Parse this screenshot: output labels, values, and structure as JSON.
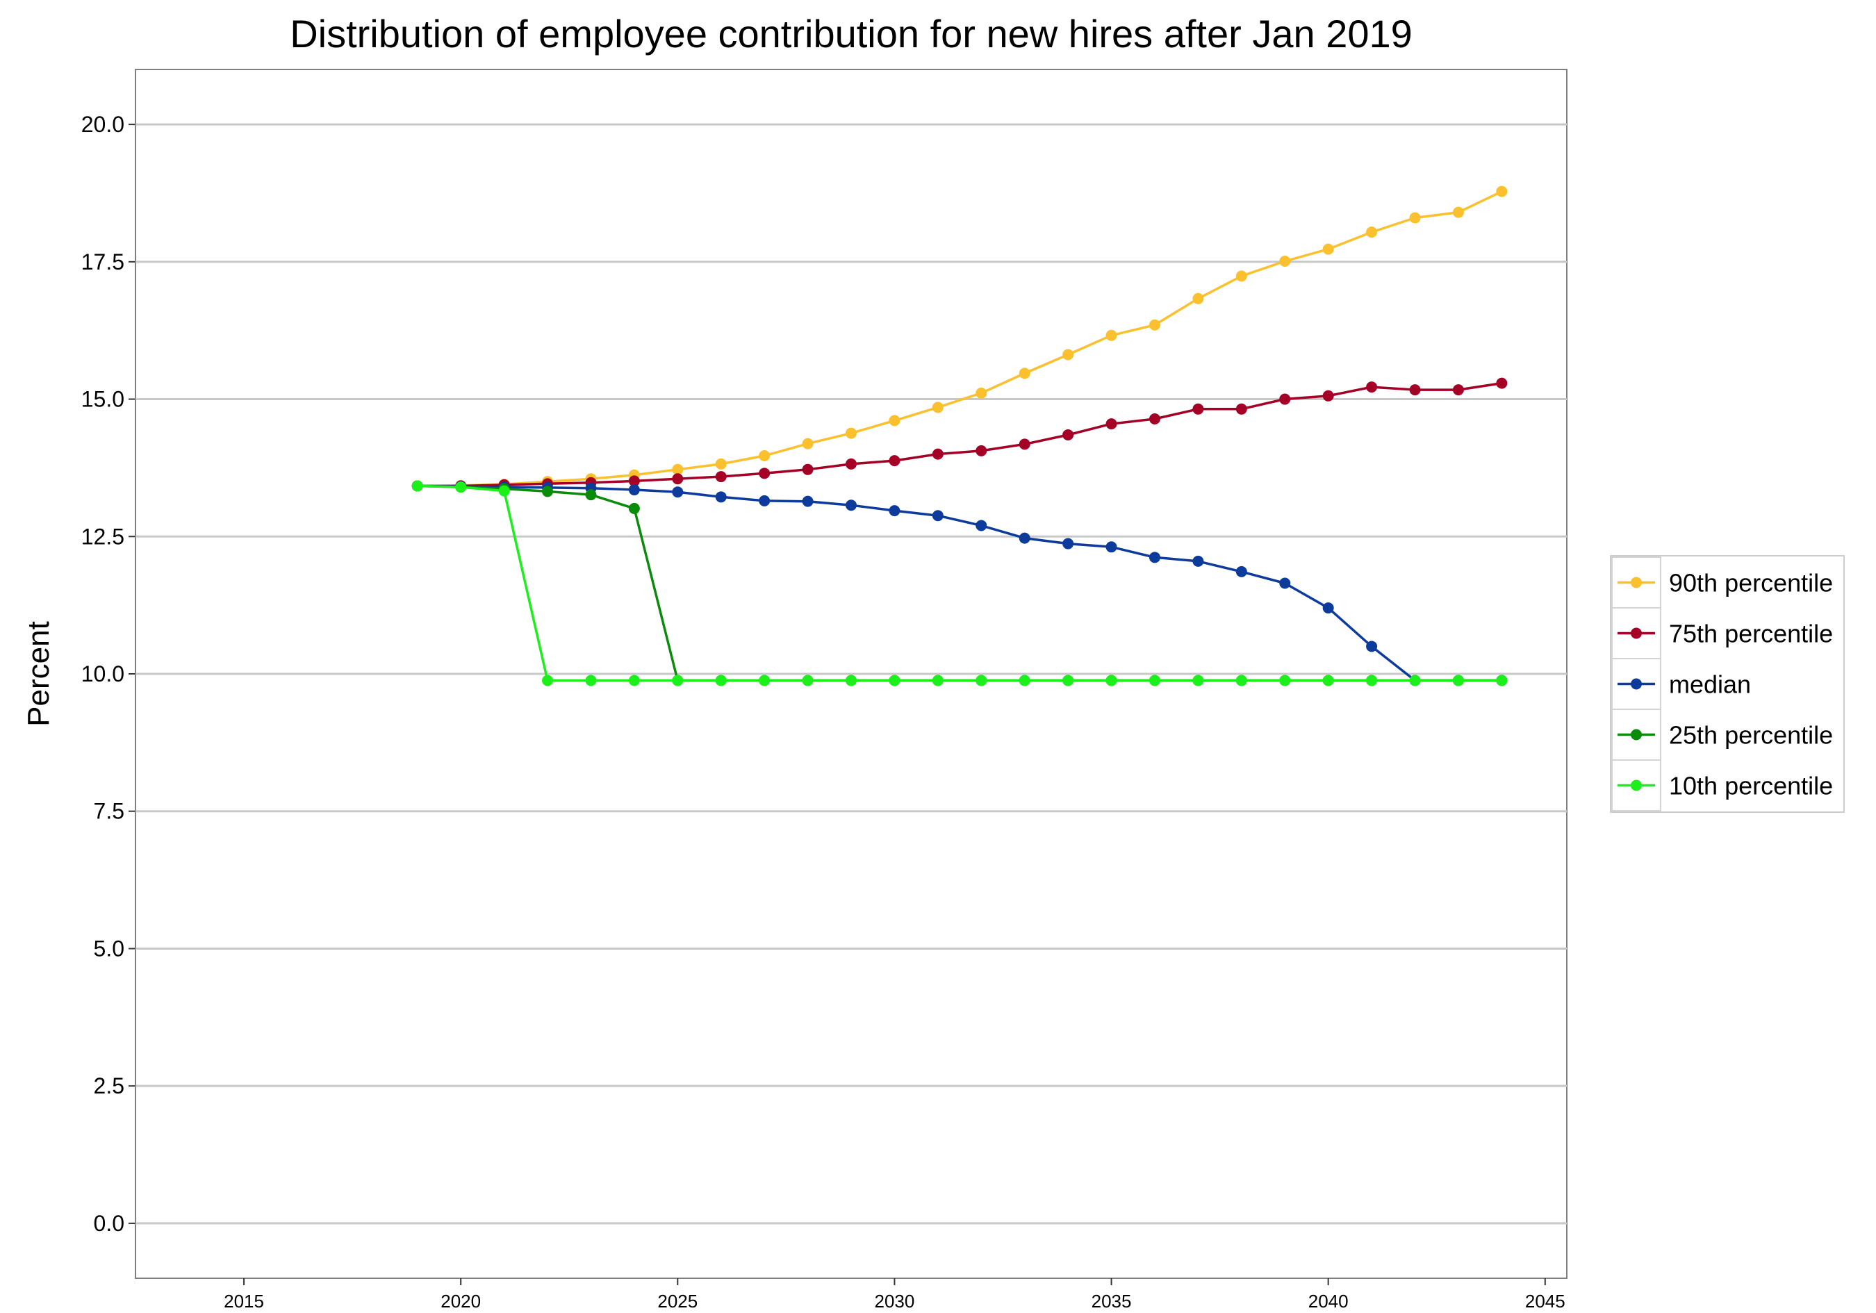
{
  "chart_data": {
    "type": "line",
    "title": "Distribution of employee contribution for new hires after Jan 2019",
    "xlabel": "",
    "ylabel": "Percent",
    "xlim": [
      2012.5,
      2045.5
    ],
    "ylim": [
      -1.0,
      21.0
    ],
    "xticks": [
      "2015",
      "2020",
      "2025",
      "2030",
      "2035",
      "2040",
      "2045"
    ],
    "yticks": [
      "0.0",
      "2.5",
      "5.0",
      "7.5",
      "10.0",
      "12.5",
      "15.0",
      "17.5",
      "20.0"
    ],
    "grid": "horizontal",
    "legend_position": "right",
    "x": [
      2019,
      2020,
      2021,
      2022,
      2023,
      2024,
      2025,
      2026,
      2027,
      2028,
      2029,
      2030,
      2031,
      2032,
      2033,
      2034,
      2035,
      2036,
      2037,
      2038,
      2039,
      2040,
      2041,
      2042,
      2043,
      2044
    ],
    "series": [
      {
        "name": "90th percentile",
        "color": "#fbc02d",
        "values": [
          13.42,
          13.43,
          13.45,
          13.5,
          13.55,
          13.62,
          13.72,
          13.82,
          13.97,
          14.19,
          14.38,
          14.61,
          14.85,
          15.11,
          15.47,
          15.81,
          16.16,
          16.35,
          16.83,
          17.24,
          17.51,
          17.73,
          18.04,
          18.3,
          18.4,
          18.78
        ]
      },
      {
        "name": "75th percentile",
        "color": "#a50026",
        "values": [
          13.42,
          13.42,
          13.44,
          13.46,
          13.48,
          13.51,
          13.55,
          13.59,
          13.65,
          13.72,
          13.82,
          13.88,
          14.0,
          14.06,
          14.18,
          14.35,
          14.55,
          14.64,
          14.82,
          14.82,
          15.0,
          15.06,
          15.22,
          15.17,
          15.17,
          15.29
        ]
      },
      {
        "name": "median",
        "color": "#0d3b9c",
        "values": [
          13.42,
          13.41,
          13.4,
          13.39,
          13.38,
          13.35,
          13.31,
          13.22,
          13.15,
          13.14,
          13.07,
          12.97,
          12.88,
          12.7,
          12.47,
          12.37,
          12.31,
          12.12,
          12.05,
          11.86,
          11.65,
          11.2,
          10.5,
          9.88,
          9.88,
          9.88
        ]
      },
      {
        "name": "25th percentile",
        "color": "#0a8c0a",
        "values": [
          13.42,
          13.4,
          13.37,
          13.32,
          13.26,
          13.01,
          9.88,
          9.88,
          9.88,
          9.88,
          9.88,
          9.88,
          9.88,
          9.88,
          9.88,
          9.88,
          9.88,
          9.88,
          9.88,
          9.88,
          9.88,
          9.88,
          9.88,
          9.88,
          9.88,
          9.88
        ]
      },
      {
        "name": "10th percentile",
        "color": "#1bf01b",
        "values": [
          13.42,
          13.4,
          13.33,
          9.88,
          9.88,
          9.88,
          9.88,
          9.88,
          9.88,
          9.88,
          9.88,
          9.88,
          9.88,
          9.88,
          9.88,
          9.88,
          9.88,
          9.88,
          9.88,
          9.88,
          9.88,
          9.88,
          9.88,
          9.88,
          9.88,
          9.88
        ]
      }
    ]
  }
}
